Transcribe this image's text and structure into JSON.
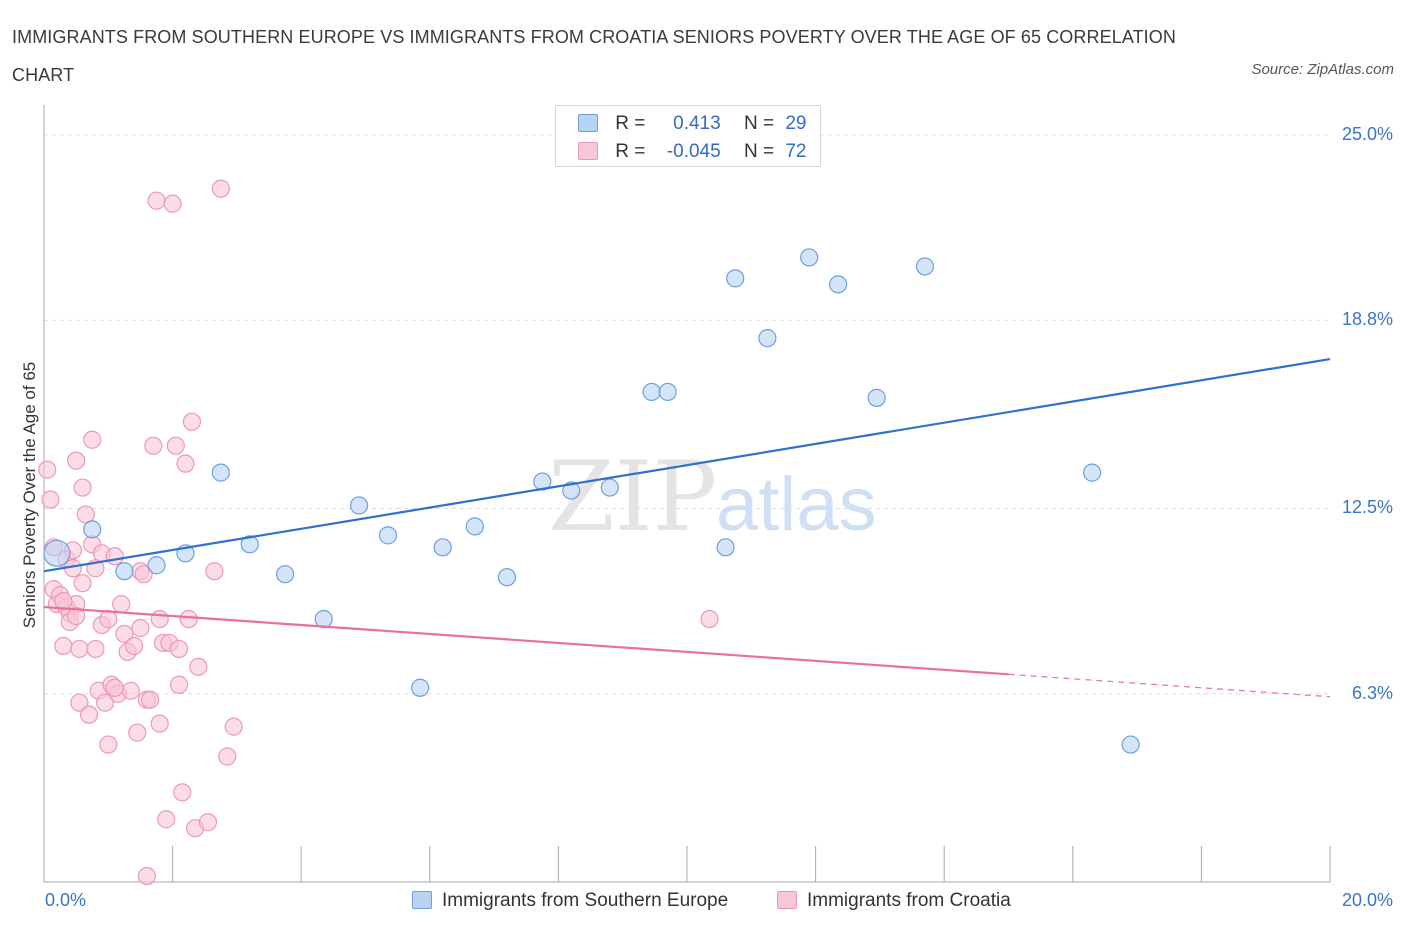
{
  "title": "IMMIGRANTS FROM SOUTHERN EUROPE VS IMMIGRANTS FROM CROATIA SENIORS POVERTY OVER THE AGE OF 65 CORRELATION CHART",
  "source": "Source: ZipAtlas.com",
  "watermark": {
    "zip": "ZIP",
    "atlas": "atlas"
  },
  "legend_top": {
    "r_label": "R =",
    "n_label": "N =",
    "rows": [
      {
        "r": "0.413",
        "n": "29"
      },
      {
        "r": "-0.045",
        "n": "72"
      }
    ]
  },
  "colors": {
    "blue_fill": "#b9d3f3",
    "blue_stroke": "#6d9fe0",
    "blue_line": "#2f6fd0",
    "pink_fill": "#f8c7d8",
    "pink_stroke": "#ee98b6",
    "pink_line": "#e8709a",
    "grid": "#dcdcdc",
    "axis": "#aaaaaa",
    "tick_label": "#3b73c8"
  },
  "chart_data": {
    "type": "scatter",
    "ylabel": "Seniors Poverty Over the Age of 65",
    "xlim": [
      0,
      20
    ],
    "ylim": [
      0,
      25.6
    ],
    "x_tick_labels": [
      {
        "v": 0,
        "t": "0.0%"
      },
      {
        "v": 20,
        "t": "20.0%"
      }
    ],
    "y_tick_labels": [
      {
        "v": 6.3,
        "t": "6.3%"
      },
      {
        "v": 12.5,
        "t": "12.5%"
      },
      {
        "v": 18.8,
        "t": "18.8%"
      },
      {
        "v": 25.0,
        "t": "25.0%"
      }
    ],
    "grid": true,
    "legend_position": "bottom",
    "series": [
      {
        "name": "Immigrants from Southern Europe",
        "color": "blue",
        "trend": {
          "x": [
            0,
            20
          ],
          "y": [
            10.4,
            17.5
          ],
          "solid_to": 20
        },
        "points": [
          [
            0.2,
            11.0
          ],
          [
            0.75,
            11.8
          ],
          [
            1.25,
            10.4
          ],
          [
            1.75,
            10.6
          ],
          [
            2.2,
            11.0
          ],
          [
            2.75,
            13.7
          ],
          [
            3.2,
            11.3
          ],
          [
            3.75,
            10.3
          ],
          [
            4.35,
            8.8
          ],
          [
            4.9,
            12.6
          ],
          [
            5.35,
            11.6
          ],
          [
            5.85,
            6.5
          ],
          [
            6.2,
            11.2
          ],
          [
            6.7,
            11.9
          ],
          [
            7.2,
            10.2
          ],
          [
            7.75,
            13.4
          ],
          [
            8.2,
            13.1
          ],
          [
            8.8,
            13.2
          ],
          [
            9.45,
            16.4
          ],
          [
            9.7,
            16.4
          ],
          [
            10.6,
            11.2
          ],
          [
            10.75,
            20.2
          ],
          [
            11.25,
            18.2
          ],
          [
            11.9,
            20.9
          ],
          [
            12.35,
            20.0
          ],
          [
            12.95,
            16.2
          ],
          [
            13.7,
            20.6
          ],
          [
            16.3,
            13.7
          ],
          [
            16.9,
            4.6
          ]
        ]
      },
      {
        "name": "Immigrants from Croatia",
        "color": "pink",
        "trend": {
          "x": [
            0,
            20
          ],
          "y": [
            9.2,
            6.2
          ],
          "solid_to": 15
        },
        "points": [
          [
            0.05,
            13.8
          ],
          [
            0.1,
            12.8
          ],
          [
            0.15,
            11.2
          ],
          [
            0.15,
            9.8
          ],
          [
            0.2,
            9.3
          ],
          [
            0.25,
            9.6
          ],
          [
            0.3,
            7.9
          ],
          [
            0.35,
            10.8
          ],
          [
            0.35,
            9.2
          ],
          [
            0.4,
            9.0
          ],
          [
            0.4,
            8.7
          ],
          [
            0.45,
            11.1
          ],
          [
            0.45,
            10.5
          ],
          [
            0.5,
            14.1
          ],
          [
            0.5,
            9.3
          ],
          [
            0.55,
            6.0
          ],
          [
            0.55,
            7.8
          ],
          [
            0.6,
            10.0
          ],
          [
            0.6,
            13.2
          ],
          [
            0.65,
            12.3
          ],
          [
            0.7,
            5.6
          ],
          [
            0.75,
            11.3
          ],
          [
            0.75,
            14.8
          ],
          [
            0.8,
            10.5
          ],
          [
            0.85,
            6.4
          ],
          [
            0.9,
            11.0
          ],
          [
            0.9,
            8.6
          ],
          [
            0.95,
            6.0
          ],
          [
            1.0,
            4.6
          ],
          [
            1.0,
            8.8
          ],
          [
            1.05,
            6.6
          ],
          [
            1.1,
            10.9
          ],
          [
            1.15,
            6.3
          ],
          [
            1.2,
            9.3
          ],
          [
            1.25,
            8.3
          ],
          [
            1.3,
            7.7
          ],
          [
            1.35,
            6.4
          ],
          [
            1.4,
            7.9
          ],
          [
            1.45,
            5.0
          ],
          [
            1.5,
            10.4
          ],
          [
            1.5,
            8.5
          ],
          [
            1.55,
            10.3
          ],
          [
            1.6,
            6.1
          ],
          [
            1.6,
            0.2
          ],
          [
            1.65,
            6.1
          ],
          [
            1.7,
            14.6
          ],
          [
            1.75,
            22.8
          ],
          [
            1.8,
            8.8
          ],
          [
            1.8,
            5.3
          ],
          [
            1.85,
            8.0
          ],
          [
            1.9,
            2.1
          ],
          [
            1.95,
            8.0
          ],
          [
            2.0,
            22.7
          ],
          [
            2.05,
            14.6
          ],
          [
            2.1,
            7.8
          ],
          [
            2.1,
            6.6
          ],
          [
            2.15,
            3.0
          ],
          [
            2.2,
            14.0
          ],
          [
            2.25,
            8.8
          ],
          [
            2.3,
            15.4
          ],
          [
            2.35,
            1.8
          ],
          [
            2.4,
            7.2
          ],
          [
            2.55,
            2.0
          ],
          [
            2.65,
            10.4
          ],
          [
            2.75,
            23.2
          ],
          [
            2.85,
            4.2
          ],
          [
            2.95,
            5.2
          ],
          [
            10.35,
            8.8
          ],
          [
            0.3,
            9.4
          ],
          [
            0.5,
            8.9
          ],
          [
            1.1,
            6.5
          ],
          [
            0.8,
            7.8
          ]
        ]
      }
    ]
  },
  "bottom_legend": [
    "Immigrants from Southern Europe",
    "Immigrants from Croatia"
  ]
}
